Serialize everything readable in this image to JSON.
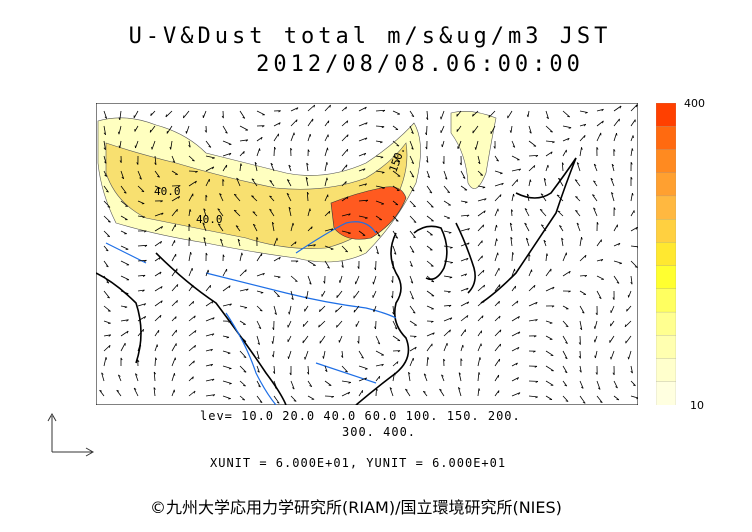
{
  "title": {
    "line1": "U-V&Dust total m/s&ug/m3 JST",
    "line2": "2012/08/08.06:00:00"
  },
  "levels": {
    "line1": "lev= 10.0 20.0 40.0 60.0 100. 150. 200.",
    "line2": "300. 400."
  },
  "units": "XUNIT = 6.000E+01, YUNIT = 6.000E+01",
  "copyright": "©九州大学応用力学研究所(RIAM)/国立環境研究所(NIES)",
  "colorbar": {
    "max_label": "400",
    "min_label": "10",
    "colors": [
      "#ff4000",
      "#ff6a10",
      "#ff8a20",
      "#ffa030",
      "#ffb840",
      "#ffd040",
      "#ffe830",
      "#ffff30",
      "#ffff60",
      "#ffff90",
      "#ffffb0",
      "#ffffcc",
      "#ffffe0"
    ]
  },
  "contour_labels": [
    {
      "text": "40.0",
      "lon": 82,
      "lat": 44
    },
    {
      "text": "40.0",
      "lon": 90,
      "lat": 41
    },
    {
      "text": "150.",
      "lon": 118,
      "lat": 45
    }
  ],
  "map_colors": {
    "land_boundary": "#000000",
    "rivers": "#1e6fe6",
    "dust_light": "#ffffc0",
    "dust_mid": "#f8e070",
    "dust_high": "#ff5a20"
  }
}
